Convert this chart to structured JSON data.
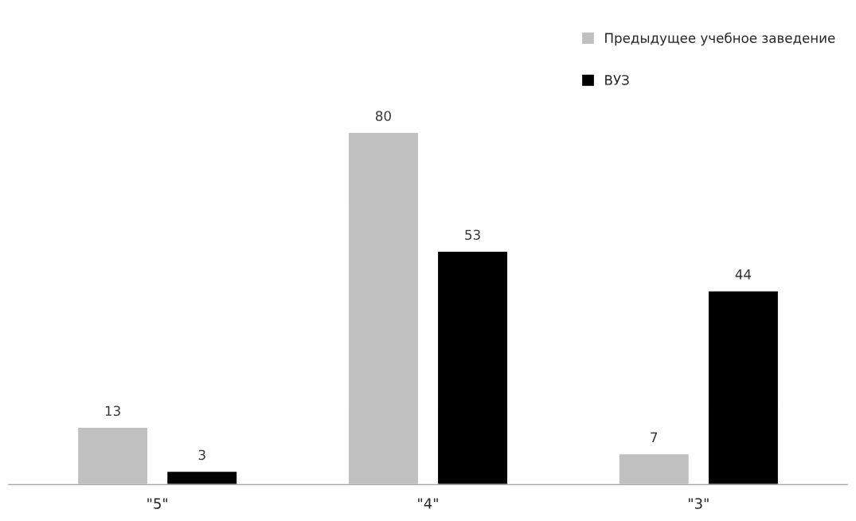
{
  "chart_data": {
    "type": "bar",
    "categories": [
      "\"5\"",
      "\"4\"",
      "\"3\""
    ],
    "series": [
      {
        "name": "Предыдущее учебное заведение",
        "color": "#c0c0c0",
        "values": [
          13,
          80,
          7
        ]
      },
      {
        "name": "ВУЗ",
        "color": "#000000",
        "values": [
          3,
          53,
          44
        ]
      }
    ],
    "data_labels": true,
    "legend": "top right",
    "grid": false
  }
}
